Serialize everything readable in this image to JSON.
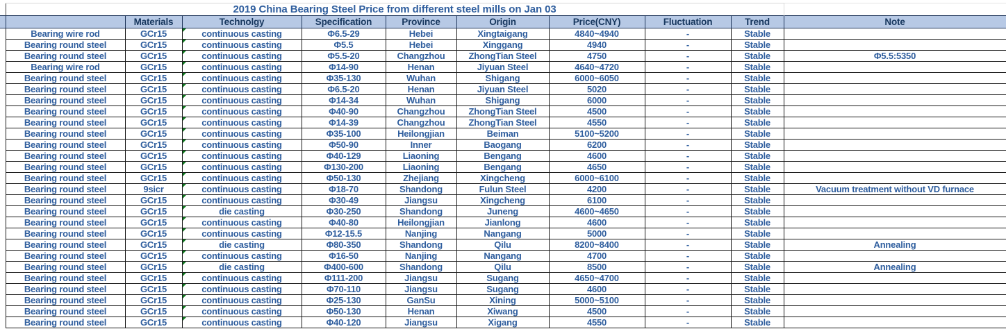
{
  "title": "2019 China Bearing Steel Price from different steel mills on Jan 03",
  "columns": [
    "",
    "Materials",
    "Technolgy",
    "Specification",
    "Province",
    "Origin",
    "Price(CNY)",
    "Fluctuation",
    "Trend",
    "Note"
  ],
  "colors": {
    "header_fill": "#b7c9e5",
    "header_text": "#17375e",
    "data_text": "#2f5e9e",
    "error_indicator_green": "#0e7a1e"
  },
  "rows": [
    {
      "product": "Bearing wire rod",
      "materials": "GCr15",
      "technology": "continuous casting",
      "specification": "Φ6.5-29",
      "province": "Hebei",
      "origin": "Xingtaigang",
      "price": "4840~4940",
      "fluctuation": "-",
      "trend": "Stable",
      "note": ""
    },
    {
      "product": "Bearing round steel",
      "materials": "GCr15",
      "technology": "continuous casting",
      "specification": "Φ5.5",
      "province": "Hebei",
      "origin": "Xinggang",
      "price": "4940",
      "fluctuation": "-",
      "trend": "Stable",
      "note": ""
    },
    {
      "product": "Bearing round steel",
      "materials": "GCr15",
      "technology": "continuous casting",
      "specification": "Φ5.5-20",
      "province": "Changzhou",
      "origin": "ZhongTian Steel",
      "price": "4750",
      "fluctuation": "-",
      "trend": "Stable",
      "note": "Φ5.5:5350"
    },
    {
      "product": "Bearing wire rod",
      "materials": "GCr15",
      "technology": "continuous casting",
      "specification": "Φ14-90",
      "province": "Henan",
      "origin": "Jiyuan Steel",
      "price": "4640~4720",
      "fluctuation": "-",
      "trend": "Stable",
      "note": ""
    },
    {
      "product": "Bearing round steel",
      "materials": "GCr15",
      "technology": "continuous casting",
      "specification": "Φ35-130",
      "province": "Wuhan",
      "origin": "Shigang",
      "price": "6000~6050",
      "fluctuation": "-",
      "trend": "Stable",
      "note": ""
    },
    {
      "product": "Bearing round steel",
      "materials": "GCr15",
      "technology": "continuous casting",
      "specification": "Φ6.5-20",
      "province": "Henan",
      "origin": "Jiyuan Steel",
      "price": "5020",
      "fluctuation": "-",
      "trend": "Stable",
      "note": ""
    },
    {
      "product": "Bearing round steel",
      "materials": "GCr15",
      "technology": "continuous casting",
      "specification": "Φ14-34",
      "province": "Wuhan",
      "origin": "Shigang",
      "price": "6000",
      "fluctuation": "-",
      "trend": "Stable",
      "note": ""
    },
    {
      "product": "Bearing round steel",
      "materials": "GCr15",
      "technology": "continuous casting",
      "specification": "Φ40-90",
      "province": "Changzhou",
      "origin": "ZhongTian Steel",
      "price": "4500",
      "fluctuation": "-",
      "trend": "Stable",
      "note": ""
    },
    {
      "product": "Bearing round steel",
      "materials": "GCr15",
      "technology": "continuous casting",
      "specification": "Φ14-39",
      "province": "Changzhou",
      "origin": "ZhongTian Steel",
      "price": "4550",
      "fluctuation": "-",
      "trend": "Stable",
      "note": ""
    },
    {
      "product": "Bearing round steel",
      "materials": "GCr15",
      "technology": "continuous casting",
      "specification": "Φ35-100",
      "province": "Heilongjian",
      "origin": "Beiman",
      "price": "5100~5200",
      "fluctuation": "-",
      "trend": "Stable",
      "note": ""
    },
    {
      "product": "Bearing round steel",
      "materials": "GCr15",
      "technology": "continuous casting",
      "specification": "Φ50-90",
      "province": "Inner",
      "origin": "Baogang",
      "price": "6200",
      "fluctuation": "-",
      "trend": "Stable",
      "note": ""
    },
    {
      "product": "Bearing round steel",
      "materials": "GCr15",
      "technology": "continuous casting",
      "specification": "Φ40-129",
      "province": "Liaoning",
      "origin": "Bengang",
      "price": "4600",
      "fluctuation": "-",
      "trend": "Stable",
      "note": ""
    },
    {
      "product": "Bearing round steel",
      "materials": "GCr15",
      "technology": "continuous casting",
      "specification": "Φ130-200",
      "province": "Liaoning",
      "origin": "Bengang",
      "price": "4650",
      "fluctuation": "-",
      "trend": "Stable",
      "note": ""
    },
    {
      "product": "Bearing round steel",
      "materials": "GCr15",
      "technology": "continuous casting",
      "specification": "Φ50-130",
      "province": "Zhejiang",
      "origin": "Xingcheng",
      "price": "6000~6100",
      "fluctuation": "-",
      "trend": "Stable",
      "note": ""
    },
    {
      "product": "Bearing round steel",
      "materials": "9sicr",
      "technology": "continuous casting",
      "specification": "Φ18-70",
      "province": "Shandong",
      "origin": "Fulun Steel",
      "price": "4200",
      "fluctuation": "-",
      "trend": "Stable",
      "note": "Vacuum treatment without VD furnace"
    },
    {
      "product": "Bearing round steel",
      "materials": "GCr15",
      "technology": "continuous casting",
      "specification": "Φ30-49",
      "province": "Jiangsu",
      "origin": "Xingcheng",
      "price": "6100",
      "fluctuation": "-",
      "trend": "Stable",
      "note": ""
    },
    {
      "product": "Bearing round steel",
      "materials": "GCr15",
      "technology": "die casting",
      "specification": "Φ30-250",
      "province": "Shandong",
      "origin": "Juneng",
      "price": "4600~4650",
      "fluctuation": "-",
      "trend": "Stable",
      "note": ""
    },
    {
      "product": "Bearing round steel",
      "materials": "GCr15",
      "technology": "continuous casting",
      "specification": "Φ40-80",
      "province": "Heilongjian",
      "origin": "Jianlong",
      "price": "4600",
      "fluctuation": "-",
      "trend": "Stable",
      "note": ""
    },
    {
      "product": "Bearing round steel",
      "materials": "GCr15",
      "technology": "continuous casting",
      "specification": "Φ12-15.5",
      "province": "Nanjing",
      "origin": "Nangang",
      "price": "5000",
      "fluctuation": "-",
      "trend": "Stable",
      "note": ""
    },
    {
      "product": "Bearing round steel",
      "materials": "GCr15",
      "technology": "die casting",
      "specification": "Φ80-350",
      "province": "Shandong",
      "origin": "Qilu",
      "price": "8200~8400",
      "fluctuation": "-",
      "trend": "Stable",
      "note": "Annealing"
    },
    {
      "product": "Bearing round steel",
      "materials": "GCr15",
      "technology": "continuous casting",
      "specification": "Φ16-50",
      "province": "Nanjing",
      "origin": "Nangang",
      "price": "4700",
      "fluctuation": "-",
      "trend": "Stable",
      "note": ""
    },
    {
      "product": "Bearing round steel",
      "materials": "GCr15",
      "technology": "die casting",
      "specification": "Φ400-600",
      "province": "Shandong",
      "origin": "Qilu",
      "price": "8500",
      "fluctuation": "-",
      "trend": "Stable",
      "note": "Annealing"
    },
    {
      "product": "Bearing round steel",
      "materials": "GCr15",
      "technology": "continuous casting",
      "specification": "Φ111-200",
      "province": "Jiangsu",
      "origin": "Sugang",
      "price": "4650~4700",
      "fluctuation": "-",
      "trend": "Stable",
      "note": ""
    },
    {
      "product": "Bearing round steel",
      "materials": "GCr15",
      "technology": "continuous casting",
      "specification": "Φ70-110",
      "province": "Jiangsu",
      "origin": "Sugang",
      "price": "4600",
      "fluctuation": "-",
      "trend": "Stable",
      "note": ""
    },
    {
      "product": "Bearing round steel",
      "materials": "GCr15",
      "technology": "continuous casting",
      "specification": "Φ25-130",
      "province": "GanSu",
      "origin": "Xining",
      "price": "5000~5100",
      "fluctuation": "-",
      "trend": "Stable",
      "note": ""
    },
    {
      "product": "Bearing round steel",
      "materials": "GCr15",
      "technology": "continuous casting",
      "specification": "Φ50-130",
      "province": "Henan",
      "origin": "Xiwang",
      "price": "4500",
      "fluctuation": "-",
      "trend": "Stable",
      "note": ""
    },
    {
      "product": "Bearing round steel",
      "materials": "GCr15",
      "technology": "continuous casting",
      "specification": "Φ40-120",
      "province": "Jiangsu",
      "origin": "Xigang",
      "price": "4550",
      "fluctuation": "-",
      "trend": "Stable",
      "note": ""
    }
  ]
}
